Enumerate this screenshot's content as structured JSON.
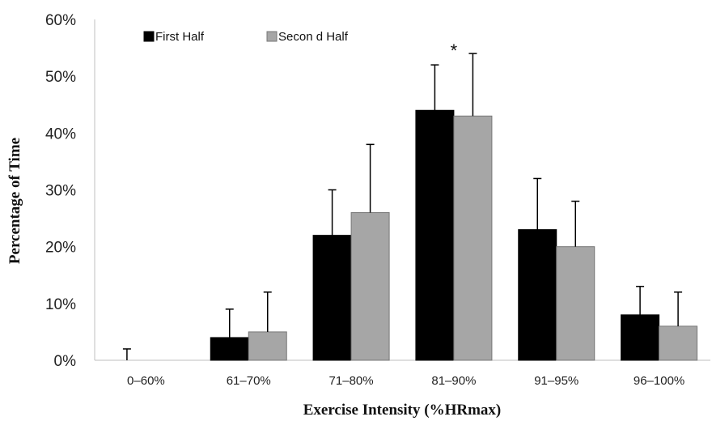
{
  "chart_data": {
    "type": "bar",
    "title": "",
    "xlabel": "Exercise Intensity (%HRmax)",
    "ylabel": "Percentage of Time",
    "categories": [
      "0–60%",
      "61–70%",
      "71–80%",
      "81–90%",
      "91–95%",
      "96–100%"
    ],
    "series": [
      {
        "name": "First Half",
        "color": "#000000",
        "values": [
          0,
          4,
          22,
          44,
          23,
          8
        ],
        "errors": [
          2,
          5,
          8,
          8,
          9,
          5
        ]
      },
      {
        "name": "Secon d Half",
        "color": "#a6a6a6",
        "values": [
          0,
          5,
          26,
          43,
          20,
          6
        ],
        "errors": [
          0,
          7,
          12,
          11,
          8,
          6
        ]
      }
    ],
    "ylim": [
      0,
      60
    ],
    "yticks": [
      "0%",
      "10%",
      "20%",
      "30%",
      "40%",
      "50%",
      "60%"
    ],
    "ytick_values": [
      0,
      10,
      20,
      30,
      40,
      50,
      60
    ],
    "legend_position": "top-left",
    "grid": false,
    "annotations": [
      {
        "text": "*",
        "category": "81–90%",
        "y": 54
      }
    ]
  }
}
